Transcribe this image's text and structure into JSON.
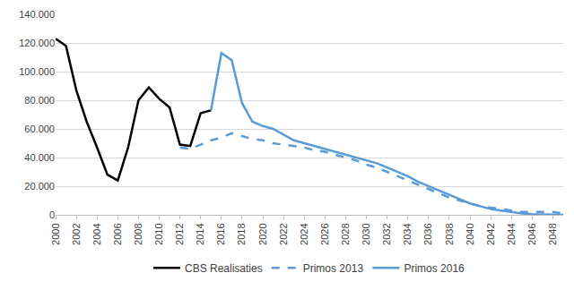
{
  "chart_data": {
    "type": "line",
    "x": [
      2000,
      2001,
      2002,
      2003,
      2004,
      2005,
      2006,
      2007,
      2008,
      2009,
      2010,
      2011,
      2012,
      2013,
      2014,
      2015,
      2016,
      2017,
      2018,
      2019,
      2020,
      2021,
      2022,
      2023,
      2024,
      2025,
      2026,
      2027,
      2028,
      2029,
      2030,
      2031,
      2032,
      2033,
      2034,
      2035,
      2036,
      2037,
      2038,
      2039,
      2040,
      2041,
      2042,
      2043,
      2044,
      2045,
      2046,
      2047,
      2048,
      2049
    ],
    "xlim": [
      2000,
      2049
    ],
    "xticks": [
      2000,
      2002,
      2004,
      2006,
      2008,
      2010,
      2012,
      2014,
      2016,
      2018,
      2020,
      2022,
      2024,
      2026,
      2028,
      2030,
      2032,
      2034,
      2036,
      2038,
      2040,
      2042,
      2044,
      2046,
      2048
    ],
    "ylim": [
      0,
      140000
    ],
    "yticks": [
      0,
      {
        "value": 20000,
        "label": "20.000"
      },
      {
        "value": 40000,
        "label": "40.000"
      },
      {
        "value": 60000,
        "label": "60.000"
      },
      {
        "value": 80000,
        "label": "80.000"
      },
      {
        "value": 100000,
        "label": "100.000"
      },
      {
        "value": 120000,
        "label": "120.000"
      },
      {
        "value": 140000,
        "label": "140.000"
      }
    ],
    "grid": "y",
    "legend": "bottom",
    "series": [
      {
        "name": "CBS Realisaties",
        "color": "#000000",
        "line_style": "solid",
        "values": [
          123000,
          118000,
          87000,
          65000,
          47000,
          28000,
          24000,
          47000,
          80000,
          89000,
          81000,
          75000,
          49000,
          48000,
          71000,
          73000,
          null,
          null,
          null,
          null,
          null,
          null,
          null,
          null,
          null,
          null,
          null,
          null,
          null,
          null,
          null,
          null,
          null,
          null,
          null,
          null,
          null,
          null,
          null,
          null,
          null,
          null,
          null,
          null,
          null,
          null,
          null,
          null,
          null,
          null
        ]
      },
      {
        "name": "Primos 2013",
        "color": "#5b9bd5",
        "line_style": "dash",
        "values": [
          null,
          null,
          null,
          null,
          null,
          null,
          null,
          null,
          null,
          null,
          null,
          null,
          47000,
          46000,
          49000,
          52000,
          54000,
          57000,
          55000,
          53000,
          52000,
          50000,
          49000,
          48000,
          47000,
          45000,
          44000,
          42000,
          40000,
          38000,
          35000,
          33000,
          30000,
          27000,
          24000,
          21000,
          18000,
          15000,
          12000,
          10000,
          8000,
          6000,
          5000,
          4000,
          3000,
          2000,
          2000,
          2000,
          2000,
          1000
        ]
      },
      {
        "name": "Primos 2016",
        "color": "#5b9bd5",
        "line_style": "solid",
        "values": [
          null,
          null,
          null,
          null,
          null,
          null,
          null,
          null,
          null,
          null,
          null,
          null,
          null,
          null,
          null,
          73000,
          113000,
          108000,
          78000,
          65000,
          62000,
          60000,
          56000,
          52000,
          50000,
          48000,
          46000,
          44000,
          42000,
          40000,
          38000,
          36000,
          33000,
          30000,
          27000,
          23000,
          20000,
          17000,
          14000,
          11000,
          8000,
          6000,
          4000,
          3000,
          2000,
          1000,
          500,
          200,
          0,
          0
        ]
      }
    ]
  }
}
